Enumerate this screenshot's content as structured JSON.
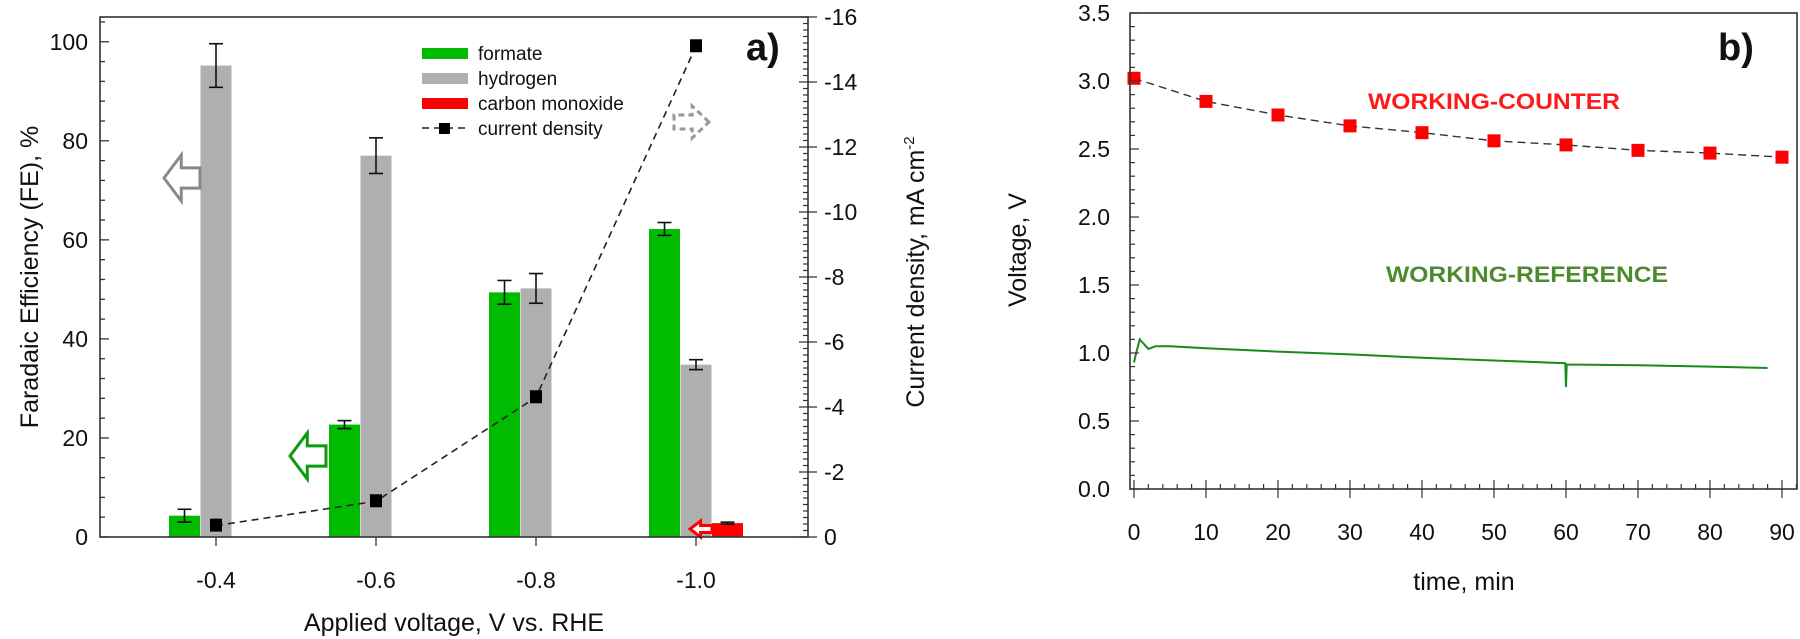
{
  "chart_data": [
    {
      "type": "bar",
      "panel_label": "a)",
      "categories": [
        "-0.4",
        "-0.6",
        "-0.8",
        "-1.0"
      ],
      "xlabel": "Applied voltage, V vs. RHE",
      "ylabel": "Faradaic Efficiency (FE), %",
      "y2label": "Current density, mA cm",
      "y2label_sup": "-2",
      "ylim": [
        0,
        105
      ],
      "yticks": [
        0,
        20,
        40,
        60,
        80,
        100
      ],
      "y2lim": [
        0,
        -16
      ],
      "y2ticks": [
        0,
        -2,
        -4,
        -6,
        -8,
        -10,
        -12,
        -14,
        -16
      ],
      "grid": false,
      "legend_position": "top-center",
      "series": [
        {
          "name": "formate",
          "kind": "bar",
          "axis": "left",
          "color": "#00bb00",
          "values": [
            4.3,
            22.7,
            49.4,
            62.2
          ],
          "errors": [
            1.3,
            0.8,
            2.4,
            1.3
          ]
        },
        {
          "name": "hydrogen",
          "kind": "bar",
          "axis": "left",
          "color": "#afafaf",
          "values": [
            95.2,
            77.0,
            50.2,
            34.8
          ],
          "errors": [
            4.4,
            3.6,
            3.0,
            1.0
          ]
        },
        {
          "name": "carbon monoxide",
          "kind": "bar",
          "axis": "left",
          "color": "#ff0000",
          "values": [
            0,
            0,
            0,
            2.8
          ],
          "errors": [
            0,
            0,
            0,
            0.2
          ]
        },
        {
          "name": "current density",
          "kind": "line",
          "axis": "right",
          "color": "#000000",
          "values": [
            -0.35,
            -1.1,
            -4.3,
            -15.1
          ]
        }
      ],
      "axis_arrows": [
        {
          "series": "hydrogen",
          "direction": "left",
          "color": "#8a8a8a",
          "style": "solid"
        },
        {
          "series": "formate",
          "direction": "left",
          "color": "#0a9a0a",
          "style": "solid"
        },
        {
          "series": "carbon monoxide",
          "direction": "left",
          "color": "#ff0000",
          "style": "solid"
        },
        {
          "series": "current density",
          "direction": "right",
          "color": "#999999",
          "style": "dashed"
        }
      ]
    },
    {
      "type": "line",
      "panel_label": "b)",
      "xlabel": "time, min",
      "ylabel": "Voltage, V",
      "xlim": [
        -0.5,
        92
      ],
      "ylim": [
        0,
        3.5
      ],
      "xticks": [
        0,
        10,
        20,
        30,
        40,
        50,
        60,
        70,
        80,
        90
      ],
      "yticks": [
        "0.0",
        "0.5",
        "1.0",
        "1.5",
        "2.0",
        "2.5",
        "3.0",
        "3.5"
      ],
      "grid": false,
      "series": [
        {
          "name": "WORKING-COUNTER",
          "color": "#ff0000",
          "label_color": "#ff1a1a",
          "marker": "square",
          "line": "dashed",
          "x": [
            0,
            10,
            20,
            30,
            40,
            50,
            60,
            70,
            80,
            90
          ],
          "y": [
            3.02,
            2.85,
            2.75,
            2.67,
            2.62,
            2.56,
            2.53,
            2.49,
            2.47,
            2.44
          ]
        },
        {
          "name": "WORKING-REFERENCE",
          "color": "#1a8a1a",
          "label_color": "#4e8a2e",
          "marker": "none",
          "line": "solid",
          "x": [
            0,
            0.3,
            0.8,
            1.3,
            2,
            3,
            5,
            10,
            20,
            30,
            40,
            50,
            59.9,
            60,
            60.1,
            70,
            80,
            88
          ],
          "y": [
            0.93,
            1.0,
            1.1,
            1.07,
            1.03,
            1.05,
            1.05,
            1.035,
            1.01,
            0.99,
            0.965,
            0.945,
            0.925,
            0.75,
            0.915,
            0.91,
            0.9,
            0.89
          ]
        }
      ]
    }
  ]
}
